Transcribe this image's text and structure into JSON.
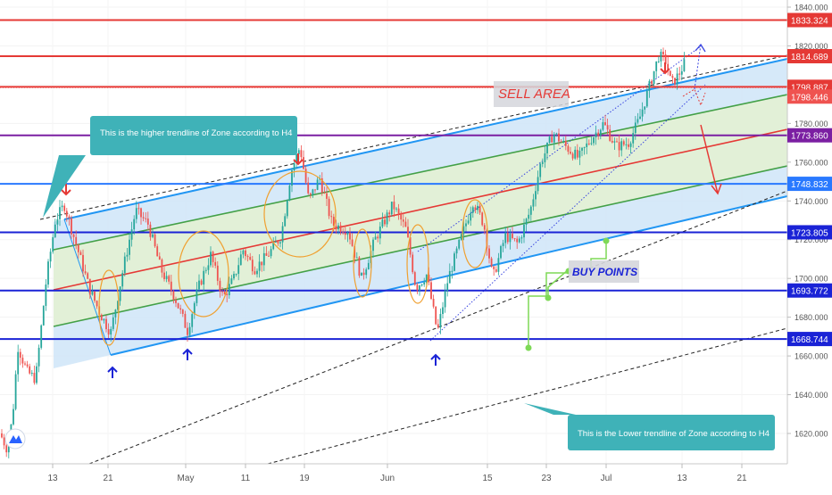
{
  "chart_data": {
    "type": "candlestick",
    "y_axis": {
      "ylim": [
        1605,
        1843
      ],
      "tick_labels": [
        "1840.000",
        "1820.000",
        "1800.000",
        "1780.000",
        "1760.000",
        "1740.000",
        "1720.000",
        "1700.000",
        "1680.000",
        "1660.000",
        "1640.000",
        "1620.000"
      ],
      "tick_values": [
        1840,
        1820,
        1800,
        1780,
        1760,
        1740,
        1720,
        1700,
        1680,
        1660,
        1640,
        1620
      ]
    },
    "x_axis": {
      "tick_labels": [
        "13",
        "21",
        "May",
        "11",
        "19",
        "Jun",
        "15",
        "23",
        "Jul",
        "13",
        "21"
      ]
    },
    "price_levels": [
      {
        "value": 1833.324,
        "label": "1833.324",
        "color": "#e53935"
      },
      {
        "value": 1814.689,
        "label": "1814.689",
        "color": "#e53935"
      },
      {
        "value": 1798.887,
        "label": "1798.887",
        "color": "#e53935"
      },
      {
        "value": 1773.86,
        "label": "1773.860",
        "color": "#7b1fa2"
      },
      {
        "value": 1748.832,
        "label": "1748.832",
        "color": "#2979ff"
      },
      {
        "value": 1723.805,
        "label": "1723.805",
        "color": "#1a23d6"
      },
      {
        "value": 1693.772,
        "label": "1693.772",
        "color": "#1a23d6"
      },
      {
        "value": 1668.744,
        "label": "1668.744",
        "color": "#1a23d6"
      }
    ],
    "current_price": {
      "value": 1798.446,
      "label": "1798.446",
      "color": "#ef5350"
    },
    "annotations": {
      "sell_area": "SELL AREA",
      "buy_points": "BUY POINTS",
      "higher_note": "This is the higher trendline of Zone according to H4",
      "lower_note": "This is the Lower trendline of Zone according to H4"
    },
    "colors": {
      "up": "#26a69a",
      "down": "#ef5350",
      "channel_fill": "#cfe5f8",
      "inner_fill": "#e3f1d3",
      "channel_line": "#2196f3",
      "mid_line": "#e53935",
      "inner_line": "#43a047",
      "ellipse": "#f0a030",
      "arrow_red": "#e53935",
      "arrow_blue": "#1a23d6",
      "note_bg": "#3fb2b8",
      "marker_green": "#7ed957"
    }
  }
}
